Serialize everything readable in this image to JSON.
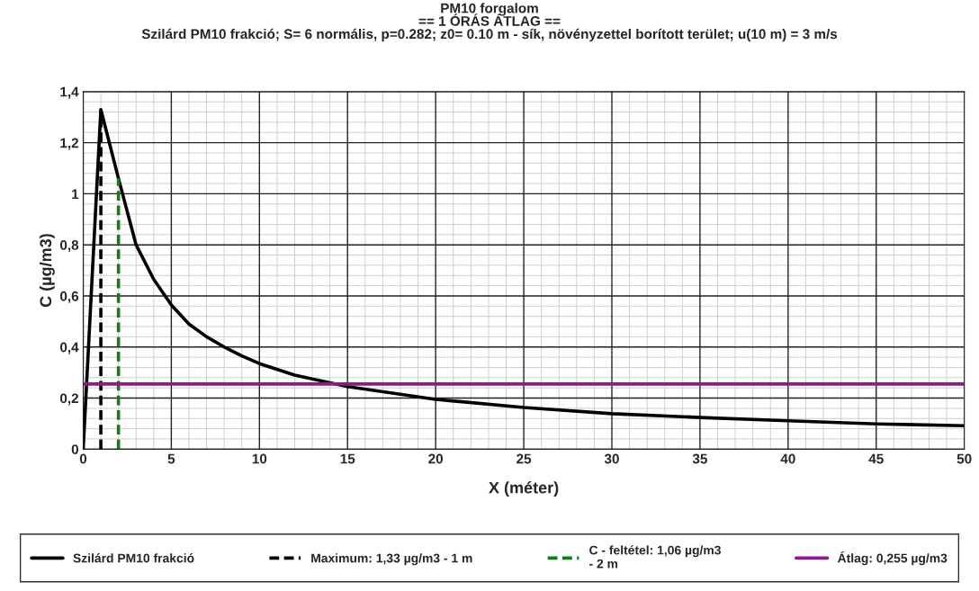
{
  "chart_data": {
    "type": "line",
    "title": "PM10 forgalom\n== 1 ÓRÁS ÁTLAG ==\nSzilárd PM10 frakció; S= 6 normális, p=0.282; z0= 0.10 m - sík, növényzettel borított terület; u(10 m) = 3 m/s",
    "xlabel": "X (méter)",
    "ylabel": "C (µg/m3)",
    "series": [
      {
        "name": "Szilárd PM10 frakció",
        "color": "#000000",
        "line_style": "solid",
        "x": [
          0,
          1,
          2,
          3,
          4,
          5,
          6,
          7,
          8,
          9,
          10,
          12,
          14,
          15,
          20,
          25,
          30,
          35,
          40,
          45,
          50
        ],
        "values": [
          0,
          1.33,
          1.06,
          0.8,
          0.665,
          0.565,
          0.49,
          0.44,
          0.4,
          0.365,
          0.335,
          0.29,
          0.26,
          0.245,
          0.195,
          0.163,
          0.139,
          0.124,
          0.111,
          0.099,
          0.092
        ]
      },
      {
        "name": "Maximum: 1,33 µg/m3 - 1 m",
        "color": "#000000",
        "line_style": "dashed",
        "x": [
          1,
          1
        ],
        "values": [
          0,
          1.33
        ]
      },
      {
        "name": "C - feltétel: 1,06 µg/m3\n- 2 m",
        "color": "#1a7a1a",
        "line_style": "dashed",
        "x": [
          2,
          2
        ],
        "values": [
          0,
          1.06
        ]
      },
      {
        "name": "Átlag: 0,255 µg/m3",
        "color": "#8b1a8b",
        "line_style": "solid",
        "x": [
          0,
          50
        ],
        "values": [
          0.255,
          0.255
        ]
      }
    ],
    "xlim": [
      0,
      50
    ],
    "xticks": [
      0,
      5,
      10,
      15,
      20,
      25,
      30,
      35,
      40,
      45,
      50
    ],
    "ylim": [
      0,
      1.4
    ],
    "yticks": [
      0,
      {
        "value": 0.2,
        "label": "0,2"
      },
      {
        "value": 0.4,
        "label": "0,4"
      },
      {
        "value": 0.6,
        "label": "0,6"
      },
      {
        "value": 0.8,
        "label": "0,8"
      },
      1,
      {
        "value": 1.2,
        "label": "1,2"
      },
      {
        "value": 1.4,
        "label": "1,4"
      }
    ],
    "grid": true,
    "legend": "bottom",
    "marker": "none"
  }
}
